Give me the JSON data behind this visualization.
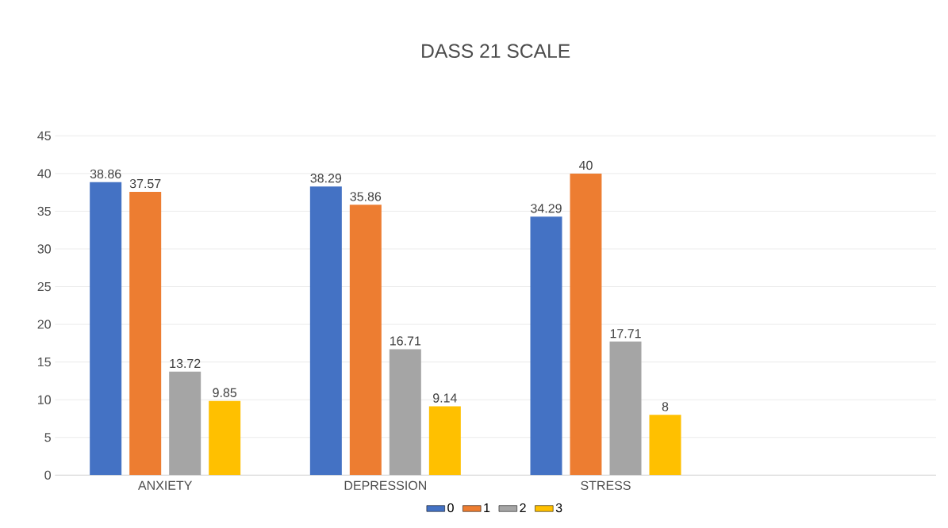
{
  "chart_data": {
    "type": "bar",
    "title": "DASS 21 SCALE",
    "categories": [
      "ANXIETY",
      "DEPRESSION",
      "STRESS",
      null
    ],
    "series": [
      {
        "name": "0",
        "color": "#4472c4",
        "values": [
          38.86,
          38.29,
          34.29,
          null
        ]
      },
      {
        "name": "1",
        "color": "#ed7d31",
        "values": [
          37.57,
          35.86,
          40,
          null
        ]
      },
      {
        "name": "2",
        "color": "#a5a5a5",
        "values": [
          13.72,
          16.71,
          17.71,
          null
        ]
      },
      {
        "name": "3",
        "color": "#ffc000",
        "values": [
          9.85,
          9.14,
          8,
          null
        ]
      }
    ],
    "ylim": [
      0,
      45
    ],
    "yticks": [
      0,
      5,
      10,
      15,
      20,
      25,
      30,
      35,
      40,
      45
    ],
    "grid": "y",
    "legend": "bottom",
    "data_labels": true
  }
}
